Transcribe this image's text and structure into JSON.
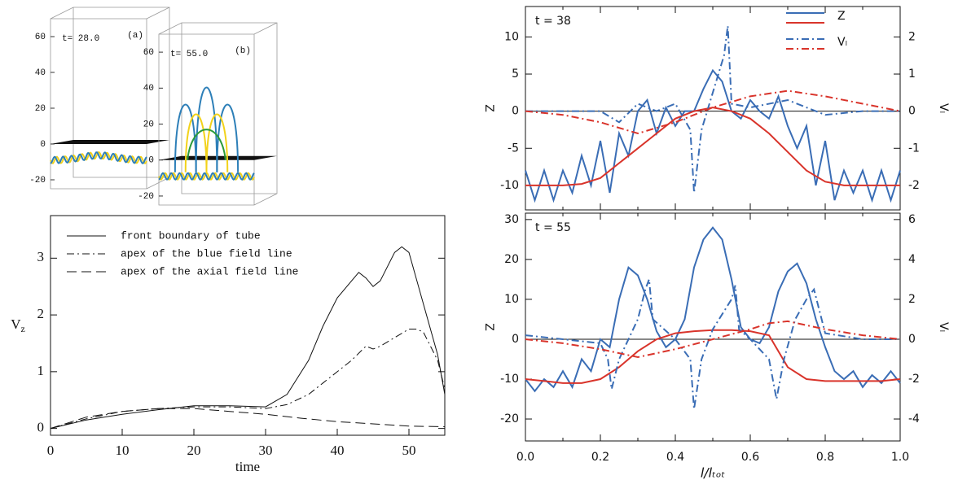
{
  "chart_data": [
    {
      "type": "box3d",
      "label": "t=  28.0",
      "panel": "(a)",
      "ylim": [
        -25,
        70
      ],
      "yticks": [
        60,
        40,
        20,
        0,
        -20
      ]
    },
    {
      "type": "box3d",
      "label": "t=  55.0",
      "panel": "(b)",
      "ylim": [
        -25,
        70
      ],
      "yticks": [
        60,
        40,
        20,
        0,
        -20
      ]
    },
    {
      "type": "line",
      "xlabel": "time",
      "ylabel": "V",
      "ylabel_sub": "z",
      "xlim": [
        0,
        55
      ],
      "ylim": [
        -0.12,
        3.75
      ],
      "xticks": [
        0,
        10,
        20,
        30,
        40,
        50
      ],
      "yticks": [
        0,
        1,
        2,
        3
      ],
      "series": [
        {
          "name": "front boundary of tube",
          "color": "#111",
          "line_style": "solid",
          "x": [
            0,
            5,
            10,
            15,
            20,
            25,
            30,
            33,
            36,
            38,
            40,
            42,
            43,
            44,
            45,
            46,
            48,
            49,
            50,
            52,
            54,
            55
          ],
          "values": [
            0,
            0.15,
            0.25,
            0.33,
            0.4,
            0.4,
            0.38,
            0.6,
            1.2,
            1.8,
            2.3,
            2.6,
            2.75,
            2.65,
            2.5,
            2.6,
            3.1,
            3.2,
            3.1,
            2.2,
            1.3,
            0.6
          ]
        },
        {
          "name": "apex of the blue field line",
          "color": "#111",
          "line_style": "dashdot",
          "x": [
            0,
            5,
            10,
            15,
            20,
            25,
            30,
            33,
            36,
            38,
            40,
            42,
            44,
            45,
            46,
            48,
            50,
            51,
            52,
            54,
            55
          ],
          "values": [
            0,
            0.17,
            0.3,
            0.35,
            0.38,
            0.38,
            0.35,
            0.42,
            0.6,
            0.8,
            1.0,
            1.2,
            1.45,
            1.4,
            1.45,
            1.6,
            1.75,
            1.75,
            1.7,
            1.2,
            0.7
          ]
        },
        {
          "name": "apex of the axial field line",
          "color": "#111",
          "line_style": "dashed",
          "x": [
            0,
            5,
            10,
            15,
            20,
            25,
            30,
            35,
            40,
            45,
            50,
            55
          ],
          "values": [
            0,
            0.2,
            0.3,
            0.35,
            0.35,
            0.3,
            0.25,
            0.18,
            0.12,
            0.08,
            0.04,
            0.03
          ]
        }
      ]
    },
    {
      "type": "line",
      "label": "t = 38",
      "ylabel": "Z",
      "y2label": "Vₗ",
      "xlim": [
        0,
        1
      ],
      "ylim": [
        -13.3,
        14.1
      ],
      "yticks": [
        10,
        5,
        0,
        -5,
        -10
      ],
      "y2lim": [
        -2.66,
        2.82
      ],
      "y2ticks": [
        2,
        1,
        0,
        -1,
        -2
      ],
      "series": [
        {
          "name": "Z",
          "color": "#3a6db5",
          "line_style": "solid",
          "x": [
            0,
            0.025,
            0.05,
            0.075,
            0.1,
            0.125,
            0.15,
            0.175,
            0.2,
            0.225,
            0.25,
            0.275,
            0.3,
            0.325,
            0.35,
            0.375,
            0.4,
            0.425,
            0.45,
            0.475,
            0.5,
            0.525,
            0.55,
            0.575,
            0.6,
            0.625,
            0.65,
            0.675,
            0.7,
            0.725,
            0.75,
            0.775,
            0.8,
            0.825,
            0.85,
            0.875,
            0.9,
            0.925,
            0.95,
            0.975,
            1
          ],
          "values": [
            -8,
            -12,
            -8,
            -12,
            -8,
            -11,
            -6,
            -10,
            -4,
            -11,
            -3,
            -6,
            0,
            1.5,
            -3,
            0.5,
            -2,
            0,
            0,
            3,
            5.5,
            4,
            0,
            -1,
            1.5,
            0,
            -1,
            2,
            -2,
            -5,
            -2,
            -10,
            -4,
            -12,
            -8,
            -11,
            -8,
            -12,
            -8,
            -12,
            -8
          ]
        },
        {
          "color": "#d9342b",
          "line_style": "solid",
          "x": [
            0,
            0.05,
            0.1,
            0.15,
            0.2,
            0.25,
            0.3,
            0.35,
            0.4,
            0.45,
            0.5,
            0.55,
            0.6,
            0.65,
            0.7,
            0.75,
            0.8,
            0.85,
            0.9,
            0.95,
            1
          ],
          "values": [
            -10,
            -10,
            -10,
            -9.8,
            -9,
            -7,
            -5,
            -3,
            -1,
            0,
            0.5,
            0,
            -1,
            -3,
            -5.5,
            -8,
            -9.5,
            -10,
            -10,
            -10,
            -10
          ]
        },
        {
          "name": "Vₗ",
          "color": "#3a6db5",
          "line_style": "dashdot",
          "axis": "y2",
          "x": [
            0,
            0.1,
            0.2,
            0.25,
            0.3,
            0.35,
            0.4,
            0.44,
            0.45,
            0.47,
            0.5,
            0.53,
            0.54,
            0.55,
            0.6,
            0.7,
            0.8,
            0.9,
            1
          ],
          "values": [
            0,
            0,
            0,
            -0.3,
            0.2,
            0,
            0.2,
            -0.5,
            -2.2,
            -0.5,
            0.5,
            1.5,
            2.3,
            0.2,
            0.1,
            0.3,
            -0.1,
            0,
            0
          ]
        },
        {
          "color": "#d9342b",
          "line_style": "dashdot",
          "axis": "y2",
          "x": [
            0,
            0.1,
            0.2,
            0.3,
            0.4,
            0.5,
            0.6,
            0.7,
            0.8,
            0.9,
            1
          ],
          "values": [
            0,
            -0.1,
            -0.3,
            -0.6,
            -0.3,
            0.1,
            0.4,
            0.55,
            0.4,
            0.2,
            0
          ]
        }
      ]
    },
    {
      "type": "line",
      "label": "t = 55",
      "xlabel": "l/lₜₒₜ",
      "ylabel": "Z",
      "y2label": "Vₗ",
      "xlim": [
        0,
        1
      ],
      "ylim": [
        -25.5,
        31.6
      ],
      "yticks": [
        30,
        20,
        10,
        0,
        -10,
        -20
      ],
      "y2lim": [
        -5.1,
        6.32
      ],
      "y2ticks": [
        6,
        4,
        2,
        0,
        -2,
        -4
      ],
      "xticks": [
        {
          "value": 0,
          "label": "0.0"
        },
        {
          "value": 0.2,
          "label": "0.2"
        },
        {
          "value": 0.4,
          "label": "0.4"
        },
        {
          "value": 0.6,
          "label": "0.6"
        },
        {
          "value": 0.8,
          "label": "0.8"
        },
        {
          "value": 1,
          "label": "1.0"
        }
      ],
      "series": [
        {
          "color": "#3a6db5",
          "line_style": "solid",
          "x": [
            0,
            0.025,
            0.05,
            0.075,
            0.1,
            0.125,
            0.15,
            0.175,
            0.2,
            0.225,
            0.25,
            0.275,
            0.3,
            0.325,
            0.35,
            0.375,
            0.4,
            0.425,
            0.45,
            0.475,
            0.5,
            0.525,
            0.55,
            0.575,
            0.6,
            0.625,
            0.65,
            0.675,
            0.7,
            0.725,
            0.75,
            0.775,
            0.8,
            0.825,
            0.85,
            0.875,
            0.9,
            0.925,
            0.95,
            0.975,
            1
          ],
          "values": [
            -10,
            -13,
            -10,
            -12,
            -8,
            -12,
            -5,
            -8,
            0,
            -2,
            10,
            18,
            16,
            10,
            2,
            -2,
            0,
            5,
            18,
            25,
            28,
            25,
            15,
            3,
            0,
            -1,
            3,
            12,
            17,
            19,
            14,
            5,
            -2,
            -8,
            -10,
            -8,
            -12,
            -9,
            -11,
            -8,
            -11
          ]
        },
        {
          "color": "#d9342b",
          "line_style": "solid",
          "x": [
            0,
            0.05,
            0.1,
            0.15,
            0.2,
            0.25,
            0.3,
            0.35,
            0.4,
            0.45,
            0.5,
            0.55,
            0.6,
            0.65,
            0.675,
            0.7,
            0.75,
            0.8,
            0.85,
            0.9,
            0.95,
            1
          ],
          "values": [
            -10,
            -10.5,
            -11,
            -11,
            -10,
            -7,
            -3,
            0,
            1.5,
            2,
            2.3,
            2.3,
            2,
            1,
            -3,
            -7,
            -10,
            -10.5,
            -10.5,
            -10.5,
            -10.5,
            -10
          ]
        },
        {
          "color": "#3a6db5",
          "line_style": "dashdot",
          "axis": "y2",
          "x": [
            0,
            0.1,
            0.2,
            0.22,
            0.23,
            0.25,
            0.3,
            0.32,
            0.33,
            0.34,
            0.4,
            0.44,
            0.45,
            0.47,
            0.5,
            0.55,
            0.56,
            0.57,
            0.6,
            0.65,
            0.67,
            0.69,
            0.72,
            0.75,
            0.77,
            0.8,
            0.9,
            1
          ],
          "values": [
            0.2,
            0,
            -0.2,
            -1,
            -2.5,
            -1,
            1,
            2.5,
            3,
            1,
            0,
            -1,
            -3.5,
            -1,
            0.5,
            2,
            2.7,
            0.5,
            0,
            -1,
            -3,
            -1,
            1,
            2,
            2.5,
            0.3,
            0,
            0
          ]
        },
        {
          "color": "#d9342b",
          "line_style": "dashdot",
          "axis": "y2",
          "x": [
            0,
            0.1,
            0.2,
            0.3,
            0.4,
            0.5,
            0.6,
            0.65,
            0.7,
            0.8,
            0.9,
            1
          ],
          "values": [
            0,
            -0.2,
            -0.5,
            -0.9,
            -0.5,
            0,
            0.5,
            0.8,
            0.9,
            0.5,
            0.2,
            0
          ]
        }
      ]
    }
  ]
}
